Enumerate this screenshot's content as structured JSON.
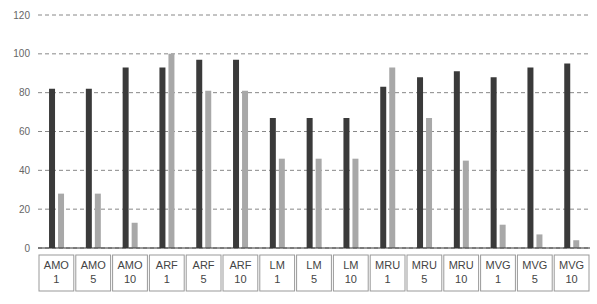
{
  "chart_data": {
    "type": "bar",
    "categories": [
      "AMO 1",
      "AMO 5",
      "AMO 10",
      "ARF 1",
      "ARF 5",
      "ARF 10",
      "LM 1",
      "LM 5",
      "LM 10",
      "MRU 1",
      "MRU 5",
      "MRU 10",
      "MVG 1",
      "MVG 5",
      "MVG 10"
    ],
    "series": [
      {
        "color": "#3a3a3a",
        "values": [
          82,
          82,
          93,
          93,
          97,
          97,
          67,
          67,
          67,
          83,
          88,
          91,
          88,
          93,
          95
        ]
      },
      {
        "color": "#a8a8a8",
        "values": [
          28,
          28,
          13,
          100,
          81,
          81,
          46,
          46,
          46,
          93,
          67,
          45,
          12,
          7,
          4
        ]
      }
    ],
    "ylim": [
      0,
      120
    ],
    "yticks": [
      0,
      20,
      40,
      60,
      80,
      100,
      120
    ],
    "grid": true
  }
}
